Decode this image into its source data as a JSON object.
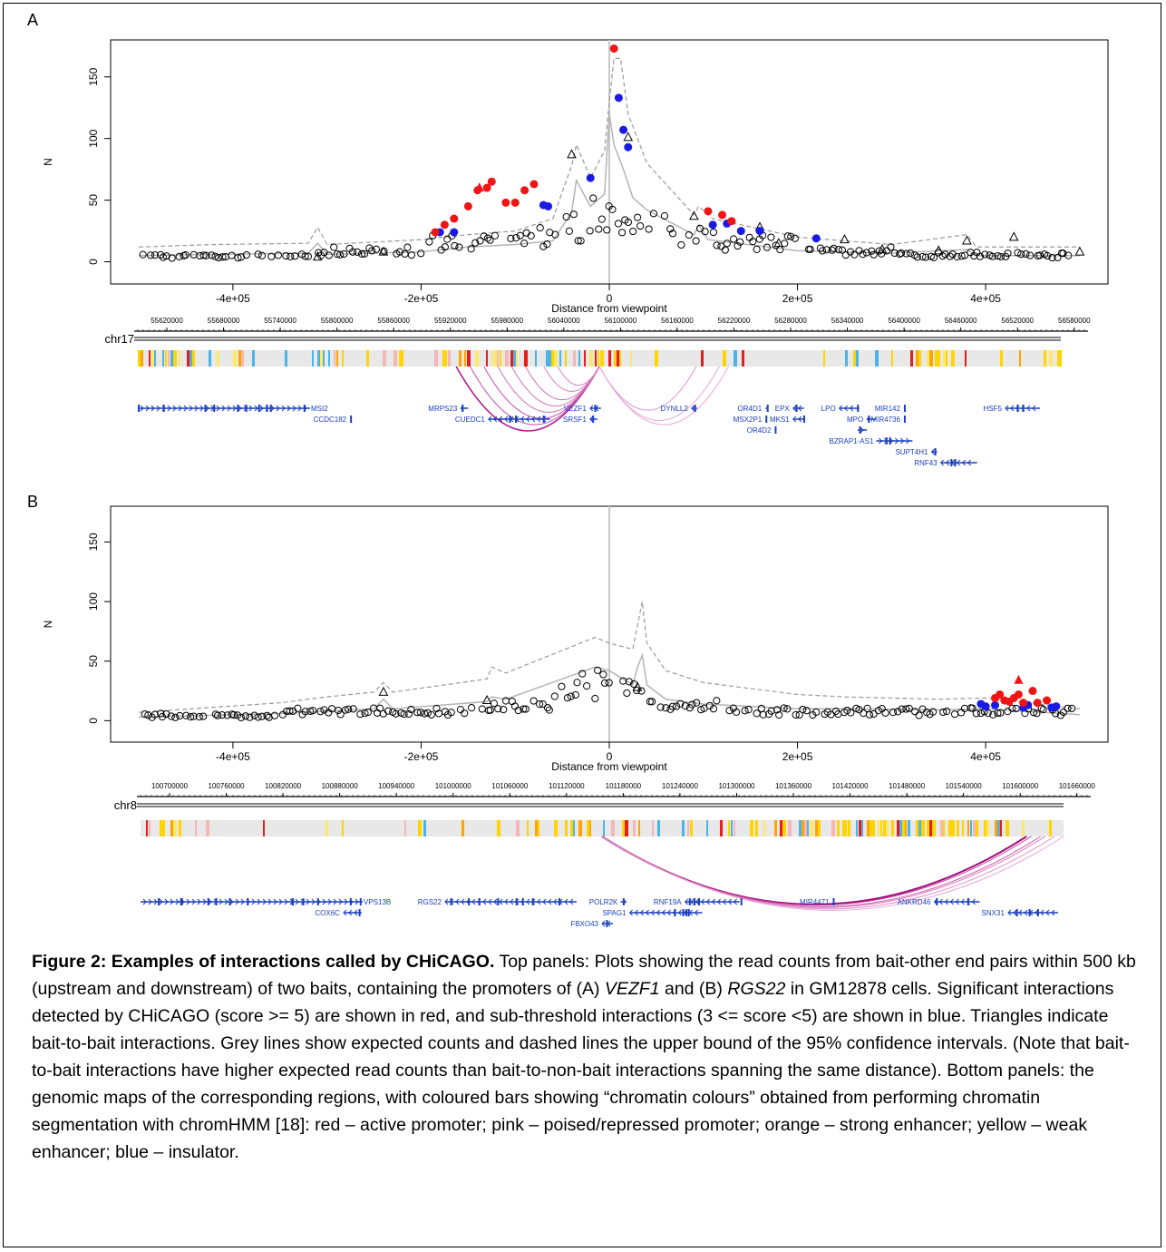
{
  "figure": {
    "panels": [
      {
        "letter": "A",
        "chrom_label": "chr17",
        "x_axis_label": "Distance from viewpoint",
        "y_axis_label": "N",
        "x_tick_labels": [
          "-4e+05",
          "-2e+05",
          "0",
          "2e+05",
          "4e+05"
        ],
        "y_tick_labels": [
          "0",
          "50",
          "100",
          "150"
        ],
        "genome_ticks": [
          "55620000",
          "55680000",
          "55740000",
          "55800000",
          "55860000",
          "55920000",
          "55980000",
          "56040000",
          "56100000",
          "56160000",
          "56220000",
          "56280000",
          "56340000",
          "56400000",
          "56460000",
          "56520000",
          "56580000"
        ],
        "genes": [
          "MSI2",
          "CCDC182",
          "MRPS23",
          "CUEDC1",
          "VEZF1",
          "SRSF1",
          "DYNLL2",
          "OR4D1",
          "MSX2P1",
          "OR4D2",
          "EPX",
          "MKS1",
          "LPO",
          "MPO",
          "MIR142",
          "MIR4736",
          "BZRAP1-AS1",
          "SUPT4H1",
          "RNF43",
          "HSF5"
        ]
      },
      {
        "letter": "B",
        "chrom_label": "chr8",
        "x_axis_label": "Distance from viewpoint",
        "y_axis_label": "N",
        "x_tick_labels": [
          "-4e+05",
          "-2e+05",
          "0",
          "2e+05",
          "4e+05"
        ],
        "y_tick_labels": [
          "0",
          "50",
          "100",
          "150"
        ],
        "genome_ticks": [
          "100700000",
          "100760000",
          "100820000",
          "100880000",
          "100940000",
          "101000000",
          "101060000",
          "101120000",
          "101180000",
          "101240000",
          "101300000",
          "101360000",
          "101420000",
          "101480000",
          "101540000",
          "101600000",
          "101660000"
        ],
        "genes": [
          "VPS13B",
          "COX6C",
          "RGS22",
          "POLR2K",
          "SPAG1",
          "FBXO43",
          "RNF19A",
          "MIR4471",
          "ANKRD46",
          "SNX31"
        ]
      }
    ],
    "caption": {
      "title": "Figure 2: Examples of interactions called by CHiCAGO.",
      "p1": " Top panels: Plots showing the read counts from bait-other end pairs within 500 kb (upstream and downstream) of two baits, containing the promoters of (A) ",
      "gene1": "VEZF1",
      "p2": " and (B) ",
      "gene2": "RGS22",
      "p3": " in GM12878 cells. Significant interactions detected by CHiCAGO (score >= 5) are shown in red, and sub-threshold interactions (3 <= score <5) are shown in blue. Triangles indicate bait-to-bait interactions. Grey lines show expected counts and dashed lines the upper bound of the 95% confidence intervals. (Note that bait-to-bait interactions have higher expected read counts than bait-to-non-bait interactions spanning the same distance). Bottom panels: the genomic maps of the corresponding regions, with coloured bars showing “chromatin colours” obtained from performing chromatin segmentation with chromHMM [18]: red – active promoter; pink – poised/repressed promoter; orange – strong enhancer; yellow – weak enhancer; blue – insulator."
    }
  },
  "chart_data": [
    {
      "type": "scatter",
      "xlabel": "Distance from viewpoint",
      "ylabel": "N",
      "xlim": [
        -500000,
        500000
      ],
      "ylim": [
        0,
        180
      ],
      "x_ticks": [
        -400000,
        -200000,
        0,
        200000,
        400000
      ],
      "y_ticks": [
        0,
        50,
        100,
        150
      ],
      "significant": [
        [
          -185000,
          24
        ],
        [
          -175000,
          30
        ],
        [
          -165000,
          35
        ],
        [
          -150000,
          45
        ],
        [
          -140000,
          58
        ],
        [
          -130000,
          60
        ],
        [
          -125000,
          65
        ],
        [
          -110000,
          48
        ],
        [
          -100000,
          48
        ],
        [
          -90000,
          58
        ],
        [
          -80000,
          63
        ],
        [
          5000,
          173
        ],
        [
          105000,
          41
        ],
        [
          120000,
          38
        ],
        [
          130000,
          33
        ]
      ],
      "significant_triangles": [
        [
          -138000,
          60
        ]
      ],
      "subthreshold": [
        [
          -180000,
          24
        ],
        [
          -165000,
          24
        ],
        [
          -70000,
          46
        ],
        [
          -65000,
          45
        ],
        [
          -20000,
          68
        ],
        [
          10000,
          133
        ],
        [
          15000,
          107
        ],
        [
          20000,
          93
        ],
        [
          110000,
          30
        ],
        [
          125000,
          31
        ],
        [
          140000,
          25
        ],
        [
          160000,
          25
        ],
        [
          220000,
          19
        ]
      ],
      "bait_triangles": [
        [
          -310000,
          4
        ],
        [
          -240000,
          8
        ],
        [
          -40000,
          87
        ],
        [
          20000,
          101
        ],
        [
          90000,
          37
        ],
        [
          160000,
          28
        ],
        [
          180000,
          15
        ],
        [
          250000,
          18
        ],
        [
          290000,
          10
        ],
        [
          350000,
          9
        ],
        [
          380000,
          17
        ],
        [
          430000,
          20
        ],
        [
          500000,
          8
        ]
      ],
      "expected": [
        [
          -500000,
          5
        ],
        [
          -420000,
          6
        ],
        [
          -320000,
          7
        ],
        [
          -310000,
          15
        ],
        [
          -300000,
          6
        ],
        [
          -200000,
          8
        ],
        [
          -150000,
          12
        ],
        [
          -100000,
          14
        ],
        [
          -60000,
          17
        ],
        [
          -40000,
          40
        ],
        [
          -35000,
          66
        ],
        [
          -20000,
          45
        ],
        [
          -5000,
          55
        ],
        [
          0,
          120
        ],
        [
          5000,
          95
        ],
        [
          15000,
          75
        ],
        [
          25000,
          52
        ],
        [
          40000,
          42
        ],
        [
          90000,
          22
        ],
        [
          95000,
          30
        ],
        [
          105000,
          18
        ],
        [
          200000,
          9
        ],
        [
          300000,
          7
        ],
        [
          380000,
          10
        ],
        [
          390000,
          5
        ],
        [
          500000,
          5
        ]
      ],
      "upper_bound": [
        [
          -500000,
          12
        ],
        [
          -420000,
          14
        ],
        [
          -320000,
          15
        ],
        [
          -310000,
          28
        ],
        [
          -300000,
          14
        ],
        [
          -200000,
          18
        ],
        [
          -150000,
          22
        ],
        [
          -100000,
          25
        ],
        [
          -60000,
          35
        ],
        [
          -40000,
          78
        ],
        [
          -35000,
          95
        ],
        [
          -20000,
          68
        ],
        [
          -5000,
          90
        ],
        [
          0,
          130
        ],
        [
          5000,
          165
        ],
        [
          12000,
          165
        ],
        [
          20000,
          120
        ],
        [
          40000,
          80
        ],
        [
          90000,
          38
        ],
        [
          95000,
          45
        ],
        [
          110000,
          35
        ],
        [
          200000,
          20
        ],
        [
          300000,
          14
        ],
        [
          380000,
          22
        ],
        [
          390000,
          12
        ],
        [
          500000,
          12
        ]
      ]
    },
    {
      "type": "scatter",
      "xlabel": "Distance from viewpoint",
      "ylabel": "N",
      "xlim": [
        -500000,
        500000
      ],
      "ylim": [
        0,
        180
      ],
      "x_ticks": [
        -400000,
        -200000,
        0,
        200000,
        400000
      ],
      "y_ticks": [
        0,
        50,
        100,
        150
      ],
      "significant": [
        [
          410000,
          19
        ],
        [
          415000,
          22
        ],
        [
          420000,
          17
        ],
        [
          425000,
          16
        ],
        [
          430000,
          19
        ],
        [
          435000,
          22
        ],
        [
          440000,
          15
        ],
        [
          450000,
          25
        ],
        [
          455000,
          15
        ],
        [
          465000,
          17
        ]
      ],
      "significant_triangles": [
        [
          435000,
          34
        ]
      ],
      "subthreshold": [
        [
          395000,
          14
        ],
        [
          400000,
          12
        ],
        [
          410000,
          13
        ],
        [
          440000,
          11
        ],
        [
          445000,
          13
        ],
        [
          470000,
          11
        ],
        [
          475000,
          12
        ]
      ],
      "bait_triangles": [
        [
          -240000,
          24
        ],
        [
          -130000,
          17
        ],
        [
          30000,
          28
        ]
      ],
      "expected": [
        [
          -500000,
          3
        ],
        [
          -350000,
          6
        ],
        [
          -300000,
          8
        ],
        [
          -250000,
          10
        ],
        [
          -240000,
          18
        ],
        [
          -230000,
          10
        ],
        [
          -130000,
          16
        ],
        [
          -125000,
          20
        ],
        [
          -110000,
          18
        ],
        [
          -15000,
          45
        ],
        [
          0,
          42
        ],
        [
          25000,
          30
        ],
        [
          30000,
          45
        ],
        [
          35000,
          55
        ],
        [
          40000,
          30
        ],
        [
          60000,
          18
        ],
        [
          100000,
          14
        ],
        [
          200000,
          10
        ],
        [
          250000,
          10
        ],
        [
          350000,
          9
        ],
        [
          400000,
          10
        ],
        [
          500000,
          5
        ]
      ],
      "upper_bound": [
        [
          -500000,
          7
        ],
        [
          -350000,
          15
        ],
        [
          -300000,
          20
        ],
        [
          -250000,
          24
        ],
        [
          -240000,
          32
        ],
        [
          -230000,
          24
        ],
        [
          -130000,
          35
        ],
        [
          -125000,
          45
        ],
        [
          -110000,
          40
        ],
        [
          -15000,
          70
        ],
        [
          0,
          65
        ],
        [
          25000,
          60
        ],
        [
          30000,
          80
        ],
        [
          35000,
          100
        ],
        [
          40000,
          65
        ],
        [
          60000,
          42
        ],
        [
          100000,
          32
        ],
        [
          200000,
          22
        ],
        [
          250000,
          20
        ],
        [
          350000,
          18
        ],
        [
          400000,
          19
        ],
        [
          500000,
          10
        ]
      ]
    }
  ]
}
